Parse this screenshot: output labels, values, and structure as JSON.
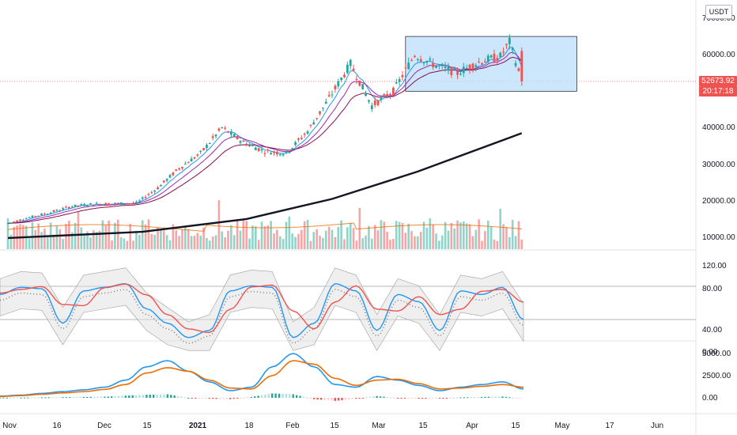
{
  "header": {
    "currency": "USDT"
  },
  "price_tag": {
    "price": "52673.92",
    "countdown": "20:17:18"
  },
  "colors": {
    "up": "#26a69a",
    "down": "#ef5350",
    "vol_up": "#8fd3c9",
    "vol_down": "#f4a5a5",
    "ma_long": "#131722",
    "stoch_k": "#2196f3",
    "stoch_d": "#ef5350",
    "macd": "#2196f3",
    "signal": "#ef6c00",
    "highlight_fill": "#bbdefb",
    "highlight_stroke": "#131722"
  },
  "axes": {
    "price_ticks": [
      "70000.00",
      "60000.00",
      "40000.00",
      "30000.00",
      "20000.00",
      "10000.00"
    ],
    "stoch_ticks": [
      "120.00",
      "80.00",
      "40.00",
      "0.00"
    ],
    "macd_ticks": [
      "5000.00",
      "2500.00",
      "0.00"
    ],
    "time_ticks": [
      "Nov",
      "16",
      "Dec",
      "15",
      "2021",
      "18",
      "Feb",
      "15",
      "Mar",
      "15",
      "Apr",
      "15",
      "May",
      "17",
      "Jun"
    ]
  },
  "chart_data": {
    "type": "candlestick",
    "pair_quote": "USDT",
    "price_range": [
      8000,
      72000
    ],
    "panels": [
      "price+volume",
      "stochastic_rsi",
      "macd"
    ],
    "highlighted_range": {
      "x_start": "2021-03-11",
      "x_end": "2021-05-06",
      "y_low": 50000,
      "y_high": 65000
    },
    "last_price": 52673.92,
    "close_series": [
      {
        "date": "2020-11-01",
        "close": 13800
      },
      {
        "date": "2020-11-08",
        "close": 15400
      },
      {
        "date": "2020-11-15",
        "close": 16800
      },
      {
        "date": "2020-11-22",
        "close": 18500
      },
      {
        "date": "2020-11-29",
        "close": 19100
      },
      {
        "date": "2020-12-06",
        "close": 19200
      },
      {
        "date": "2020-12-13",
        "close": 19300
      },
      {
        "date": "2020-12-20",
        "close": 23500
      },
      {
        "date": "2020-12-27",
        "close": 28900
      },
      {
        "date": "2021-01-03",
        "close": 33000
      },
      {
        "date": "2021-01-10",
        "close": 40000
      },
      {
        "date": "2021-01-17",
        "close": 36000
      },
      {
        "date": "2021-01-24",
        "close": 33500
      },
      {
        "date": "2021-01-31",
        "close": 33000
      },
      {
        "date": "2021-02-07",
        "close": 39000
      },
      {
        "date": "2021-02-14",
        "close": 48000
      },
      {
        "date": "2021-02-21",
        "close": 57500
      },
      {
        "date": "2021-02-28",
        "close": 46000
      },
      {
        "date": "2021-03-07",
        "close": 50000
      },
      {
        "date": "2021-03-14",
        "close": 60000
      },
      {
        "date": "2021-03-21",
        "close": 57000
      },
      {
        "date": "2021-03-28",
        "close": 55000
      },
      {
        "date": "2021-04-04",
        "close": 58000
      },
      {
        "date": "2021-04-11",
        "close": 59500
      },
      {
        "date": "2021-04-14",
        "close": 63500
      },
      {
        "date": "2021-04-18",
        "close": 52674
      }
    ],
    "ma_long": [
      {
        "date": "2020-11-01",
        "value": 9800
      },
      {
        "date": "2020-12-15",
        "value": 11500
      },
      {
        "date": "2021-01-18",
        "value": 15000
      },
      {
        "date": "2021-02-15",
        "value": 20500
      },
      {
        "date": "2021-03-15",
        "value": 28000
      },
      {
        "date": "2021-04-18",
        "value": 38500
      }
    ],
    "stoch_k_series": [
      80,
      90,
      88,
      40,
      85,
      90,
      95,
      60,
      40,
      20,
      30,
      85,
      92,
      90,
      20,
      40,
      95,
      85,
      30,
      80,
      70,
      30,
      85,
      80,
      90,
      45
    ],
    "macd_series": [
      200,
      300,
      500,
      700,
      900,
      1200,
      2000,
      3500,
      4200,
      3000,
      1800,
      800,
      1200,
      3500,
      5000,
      3500,
      1500,
      1200,
      2400,
      2000,
      1400,
      800,
      1200,
      1500,
      1800,
      1000
    ],
    "signal_series": [
      150,
      250,
      400,
      550,
      700,
      950,
      1500,
      2800,
      3400,
      3000,
      2000,
      1100,
      1000,
      2500,
      4200,
      3800,
      2200,
      1400,
      2000,
      2100,
      1600,
      1000,
      1100,
      1300,
      1500,
      1200
    ]
  }
}
